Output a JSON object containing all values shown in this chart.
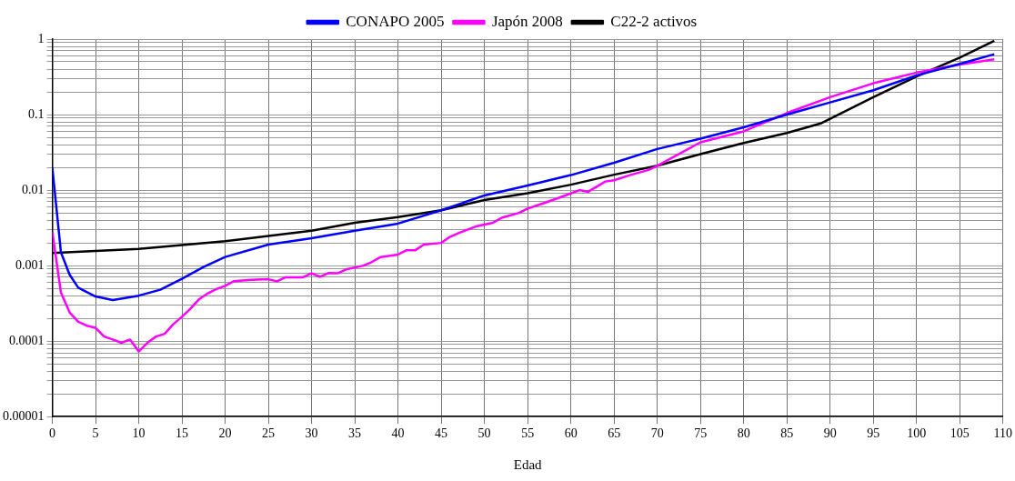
{
  "chart_data": {
    "type": "line",
    "xlabel": "Edad",
    "log": "y",
    "grid": true,
    "legend": "top",
    "marker": "none",
    "line_style": "solid",
    "xlim": [
      0,
      110
    ],
    "xticks": [
      0,
      5,
      10,
      15,
      20,
      25,
      30,
      35,
      40,
      45,
      50,
      55,
      60,
      65,
      70,
      75,
      80,
      85,
      90,
      95,
      100,
      105,
      110
    ],
    "ylim": [
      1e-05,
      1
    ],
    "yticks": [
      {
        "value": 1e-05,
        "label": "0.00001"
      },
      {
        "value": 2e-05,
        "label": null
      },
      {
        "value": 3e-05,
        "label": null
      },
      {
        "value": 4e-05,
        "label": null
      },
      {
        "value": 5e-05,
        "label": null
      },
      {
        "value": 6e-05,
        "label": null
      },
      {
        "value": 7e-05,
        "label": null
      },
      {
        "value": 8e-05,
        "label": null
      },
      {
        "value": 9e-05,
        "label": null
      },
      {
        "value": 0.0001,
        "label": "0.0001"
      },
      {
        "value": 0.0002,
        "label": null
      },
      {
        "value": 0.0003,
        "label": null
      },
      {
        "value": 0.0004,
        "label": null
      },
      {
        "value": 0.0005,
        "label": null
      },
      {
        "value": 0.0006,
        "label": null
      },
      {
        "value": 0.0007,
        "label": null
      },
      {
        "value": 0.0008,
        "label": null
      },
      {
        "value": 0.0009,
        "label": null
      },
      {
        "value": 0.001,
        "label": "0.001"
      },
      {
        "value": 0.002,
        "label": null
      },
      {
        "value": 0.003,
        "label": null
      },
      {
        "value": 0.004,
        "label": null
      },
      {
        "value": 0.005,
        "label": null
      },
      {
        "value": 0.006,
        "label": null
      },
      {
        "value": 0.007,
        "label": null
      },
      {
        "value": 0.008,
        "label": null
      },
      {
        "value": 0.009,
        "label": null
      },
      {
        "value": 0.01,
        "label": "0.01"
      },
      {
        "value": 0.02,
        "label": null
      },
      {
        "value": 0.03,
        "label": null
      },
      {
        "value": 0.04,
        "label": null
      },
      {
        "value": 0.05,
        "label": null
      },
      {
        "value": 0.06,
        "label": null
      },
      {
        "value": 0.07,
        "label": null
      },
      {
        "value": 0.08,
        "label": null
      },
      {
        "value": 0.09,
        "label": null
      },
      {
        "value": 0.1,
        "label": "0.1"
      },
      {
        "value": 0.2,
        "label": null
      },
      {
        "value": 0.3,
        "label": null
      },
      {
        "value": 0.4,
        "label": null
      },
      {
        "value": 0.5,
        "label": null
      },
      {
        "value": 0.6,
        "label": null
      },
      {
        "value": 0.7,
        "label": null
      },
      {
        "value": 0.8,
        "label": null
      },
      {
        "value": 0.9,
        "label": null
      },
      {
        "value": 1,
        "label": "1"
      }
    ],
    "series": [
      {
        "name": "CONAPO 2005",
        "color": "#0000ff",
        "x": [
          0,
          1,
          2,
          3,
          5,
          7,
          10,
          12.5,
          15,
          17.5,
          20,
          25,
          30,
          35,
          40,
          45,
          50,
          55,
          60,
          65,
          70,
          75,
          80,
          85,
          90,
          95,
          100,
          105,
          109
        ],
        "values": [
          0.02,
          0.0015,
          0.00076,
          0.00051,
          0.00039,
          0.00035,
          0.0004,
          0.00048,
          0.00067,
          0.00096,
          0.0013,
          0.0019,
          0.0023,
          0.0029,
          0.0036,
          0.0054,
          0.0085,
          0.0115,
          0.0158,
          0.023,
          0.035,
          0.048,
          0.068,
          0.1,
          0.145,
          0.21,
          0.33,
          0.47,
          0.63
        ]
      },
      {
        "name": "Japón 2008",
        "color": "#ff00ff",
        "x": [
          0,
          1,
          2,
          3,
          4,
          5,
          6,
          7,
          8,
          9,
          10,
          11,
          12,
          13,
          14,
          15,
          16,
          17,
          18,
          19,
          20,
          21,
          23,
          25,
          26,
          27,
          29,
          30,
          31,
          32,
          33,
          34,
          36,
          37,
          38,
          40,
          41,
          42,
          43,
          45,
          46,
          47,
          49,
          51,
          52,
          54,
          55,
          57,
          59,
          61,
          62,
          64,
          65,
          67,
          69,
          70,
          75,
          80,
          85,
          90,
          95,
          100,
          105,
          109
        ],
        "values": [
          0.0028,
          0.00044,
          0.00024,
          0.00018,
          0.00016,
          0.00015,
          0.000115,
          0.000105,
          9.5e-05,
          0.000105,
          7.3e-05,
          9.5e-05,
          0.000115,
          0.000125,
          0.000167,
          0.00021,
          0.00027,
          0.00036,
          0.00043,
          0.00049,
          0.00054,
          0.00062,
          0.00065,
          0.00066,
          0.00062,
          0.0007,
          0.0007,
          0.00079,
          0.00071,
          0.0008,
          0.00079,
          0.00089,
          0.001,
          0.00112,
          0.0013,
          0.0014,
          0.0016,
          0.0016,
          0.0019,
          0.002,
          0.0024,
          0.0027,
          0.0033,
          0.0037,
          0.0043,
          0.005,
          0.0057,
          0.0068,
          0.0082,
          0.01,
          0.0095,
          0.013,
          0.0135,
          0.016,
          0.0185,
          0.021,
          0.043,
          0.06,
          0.105,
          0.17,
          0.26,
          0.36,
          0.46,
          0.54
        ]
      },
      {
        "name": "C22-2 activos",
        "color": "#000000",
        "x": [
          0,
          10,
          20,
          30,
          35,
          40,
          45,
          50,
          55,
          60,
          65,
          70,
          75,
          80,
          85,
          89,
          95,
          100,
          105,
          109
        ],
        "values": [
          0.00147,
          0.00166,
          0.0021,
          0.0029,
          0.0037,
          0.0044,
          0.0054,
          0.0074,
          0.0091,
          0.0118,
          0.016,
          0.021,
          0.03,
          0.042,
          0.057,
          0.077,
          0.17,
          0.32,
          0.57,
          0.95
        ]
      }
    ]
  }
}
